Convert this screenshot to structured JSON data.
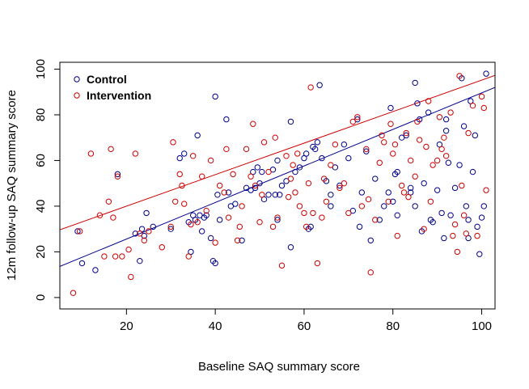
{
  "chart_data": {
    "type": "scatter",
    "title": "",
    "xlabel": "Baseline SAQ summary score",
    "ylabel": "12m follow-up SAQ summary score",
    "xlim": [
      5,
      103
    ],
    "ylim": [
      -5,
      103
    ],
    "xticks": [
      20,
      40,
      60,
      80,
      100
    ],
    "yticks": [
      0,
      20,
      40,
      60,
      80,
      100
    ],
    "grid": false,
    "legend_position": "top-left",
    "series": [
      {
        "name": "Control",
        "color": "#00008B",
        "fit_line": {
          "intercept": 9.6,
          "slope": 0.8
        },
        "points": [
          [
            9,
            29
          ],
          [
            10,
            15
          ],
          [
            13,
            12
          ],
          [
            18,
            54
          ],
          [
            22,
            28
          ],
          [
            23,
            16
          ],
          [
            23.5,
            30
          ],
          [
            24,
            27
          ],
          [
            24.5,
            37
          ],
          [
            26,
            31
          ],
          [
            30,
            30
          ],
          [
            32,
            61
          ],
          [
            33,
            63
          ],
          [
            34,
            33
          ],
          [
            34.5,
            20
          ],
          [
            35,
            36
          ],
          [
            35.5,
            34
          ],
          [
            36,
            71
          ],
          [
            36.5,
            36
          ],
          [
            37,
            29
          ],
          [
            37.5,
            35
          ],
          [
            38,
            36
          ],
          [
            39,
            26
          ],
          [
            39.5,
            16
          ],
          [
            40,
            15
          ],
          [
            40,
            88
          ],
          [
            40.5,
            45
          ],
          [
            41,
            34
          ],
          [
            42.5,
            78
          ],
          [
            43,
            46
          ],
          [
            43.5,
            40
          ],
          [
            44.5,
            41
          ],
          [
            46,
            25
          ],
          [
            47,
            48
          ],
          [
            48,
            47
          ],
          [
            48.5,
            55
          ],
          [
            49,
            48
          ],
          [
            49.5,
            57
          ],
          [
            50,
            50
          ],
          [
            50.5,
            55
          ],
          [
            51,
            43
          ],
          [
            52,
            45
          ],
          [
            53,
            56
          ],
          [
            53.5,
            45
          ],
          [
            54,
            34
          ],
          [
            54.5,
            45
          ],
          [
            55,
            49
          ],
          [
            56,
            51
          ],
          [
            57,
            77
          ],
          [
            57,
            22
          ],
          [
            58,
            55
          ],
          [
            59,
            57
          ],
          [
            60,
            61
          ],
          [
            60.5,
            63
          ],
          [
            61,
            30
          ],
          [
            61.5,
            31
          ],
          [
            62,
            66
          ],
          [
            62.5,
            65
          ],
          [
            63,
            68
          ],
          [
            64,
            61
          ],
          [
            63.5,
            93
          ],
          [
            65,
            51
          ],
          [
            66,
            45
          ],
          [
            67,
            57
          ],
          [
            68,
            49
          ],
          [
            69,
            67
          ],
          [
            70,
            61
          ],
          [
            71,
            38
          ],
          [
            72,
            78
          ],
          [
            72.5,
            31
          ],
          [
            73,
            46
          ],
          [
            74,
            64
          ],
          [
            75,
            25
          ],
          [
            76,
            52
          ],
          [
            77,
            34
          ],
          [
            78,
            40
          ],
          [
            79,
            46
          ],
          [
            79.5,
            83
          ],
          [
            80,
            42
          ],
          [
            80.5,
            54
          ],
          [
            81,
            55
          ],
          [
            81,
            36
          ],
          [
            82,
            70
          ],
          [
            83,
            71
          ],
          [
            84,
            48
          ],
          [
            84,
            46
          ],
          [
            85,
            94
          ],
          [
            85.5,
            85
          ],
          [
            86,
            78
          ],
          [
            86.5,
            29
          ],
          [
            87,
            50
          ],
          [
            88,
            81
          ],
          [
            88.5,
            34
          ],
          [
            89,
            33
          ],
          [
            90,
            47
          ],
          [
            90.5,
            67
          ],
          [
            91,
            37
          ],
          [
            91.5,
            26
          ],
          [
            92,
            78
          ],
          [
            92.5,
            59
          ],
          [
            93,
            36
          ],
          [
            94,
            48
          ],
          [
            95,
            58
          ],
          [
            95.5,
            96
          ],
          [
            96,
            75
          ],
          [
            96.5,
            40
          ],
          [
            97,
            34
          ],
          [
            97.5,
            86
          ],
          [
            98,
            55
          ],
          [
            98.5,
            71
          ],
          [
            99,
            31
          ],
          [
            99.5,
            19
          ],
          [
            100,
            35
          ],
          [
            100.5,
            40
          ],
          [
            101,
            98
          ],
          [
            97,
            26
          ],
          [
            92,
            73
          ],
          [
            85,
            40
          ],
          [
            66,
            40
          ],
          [
            54,
            60
          ]
        ]
      },
      {
        "name": "Intervention",
        "color": "#CC0000",
        "fit_line": {
          "intercept": 26.2,
          "slope": 0.69
        },
        "points": [
          [
            8,
            2
          ],
          [
            9.5,
            29
          ],
          [
            12,
            63
          ],
          [
            14,
            36
          ],
          [
            15,
            18
          ],
          [
            16,
            42
          ],
          [
            16.5,
            65
          ],
          [
            17,
            35
          ],
          [
            17.5,
            18
          ],
          [
            18,
            53
          ],
          [
            19,
            18
          ],
          [
            21,
            9
          ],
          [
            22,
            63
          ],
          [
            23,
            28
          ],
          [
            24,
            25
          ],
          [
            25,
            29
          ],
          [
            28,
            22
          ],
          [
            30,
            31
          ],
          [
            30.5,
            68
          ],
          [
            31,
            42
          ],
          [
            32,
            54
          ],
          [
            32.5,
            49
          ],
          [
            33,
            41
          ],
          [
            34,
            18
          ],
          [
            34.5,
            32
          ],
          [
            35,
            62
          ],
          [
            36,
            33
          ],
          [
            37,
            53
          ],
          [
            38,
            38
          ],
          [
            39,
            60
          ],
          [
            40,
            24
          ],
          [
            41,
            49
          ],
          [
            42,
            46
          ],
          [
            42.5,
            65
          ],
          [
            43,
            35
          ],
          [
            44,
            54
          ],
          [
            45,
            25
          ],
          [
            46,
            40
          ],
          [
            47,
            65
          ],
          [
            48,
            53
          ],
          [
            48.5,
            76
          ],
          [
            49,
            49
          ],
          [
            50,
            33
          ],
          [
            50.5,
            45
          ],
          [
            51,
            68
          ],
          [
            52,
            55
          ],
          [
            53,
            31
          ],
          [
            53.5,
            70
          ],
          [
            54,
            35
          ],
          [
            55,
            14
          ],
          [
            56,
            62
          ],
          [
            56.5,
            44
          ],
          [
            57,
            52
          ],
          [
            57.5,
            58
          ],
          [
            58,
            46
          ],
          [
            59,
            40
          ],
          [
            60,
            37
          ],
          [
            60.5,
            31
          ],
          [
            61,
            50
          ],
          [
            61.5,
            92
          ],
          [
            62,
            37
          ],
          [
            63,
            15
          ],
          [
            64,
            35
          ],
          [
            64.5,
            52
          ],
          [
            65,
            42
          ],
          [
            66,
            58
          ],
          [
            67,
            67
          ],
          [
            68,
            48
          ],
          [
            69,
            50
          ],
          [
            70,
            37
          ],
          [
            71,
            77
          ],
          [
            72,
            79
          ],
          [
            73,
            40
          ],
          [
            74,
            65
          ],
          [
            74.5,
            43
          ],
          [
            75,
            11
          ],
          [
            76,
            34
          ],
          [
            77,
            59
          ],
          [
            77.5,
            71
          ],
          [
            78,
            68
          ],
          [
            79,
            42
          ],
          [
            79.5,
            76
          ],
          [
            80,
            63
          ],
          [
            80.5,
            67
          ],
          [
            81,
            27
          ],
          [
            82,
            49
          ],
          [
            82.5,
            46
          ],
          [
            83,
            72
          ],
          [
            83.5,
            44
          ],
          [
            84,
            60
          ],
          [
            85,
            53
          ],
          [
            85.5,
            77
          ],
          [
            86,
            69
          ],
          [
            87,
            30
          ],
          [
            87.5,
            66
          ],
          [
            88,
            86
          ],
          [
            89,
            58
          ],
          [
            90,
            60
          ],
          [
            90.5,
            79
          ],
          [
            91,
            65
          ],
          [
            91.5,
            70
          ],
          [
            92,
            62
          ],
          [
            93,
            81
          ],
          [
            93.5,
            27
          ],
          [
            94,
            32
          ],
          [
            94.5,
            20
          ],
          [
            95,
            97
          ],
          [
            95.5,
            49
          ],
          [
            96,
            36
          ],
          [
            96.5,
            28
          ],
          [
            97,
            72
          ],
          [
            98,
            84
          ],
          [
            99,
            27
          ],
          [
            100,
            88
          ],
          [
            100.5,
            83
          ],
          [
            101,
            47
          ],
          [
            88.5,
            42
          ],
          [
            58.5,
            63
          ],
          [
            45.5,
            31
          ],
          [
            20.5,
            21
          ]
        ]
      }
    ]
  }
}
